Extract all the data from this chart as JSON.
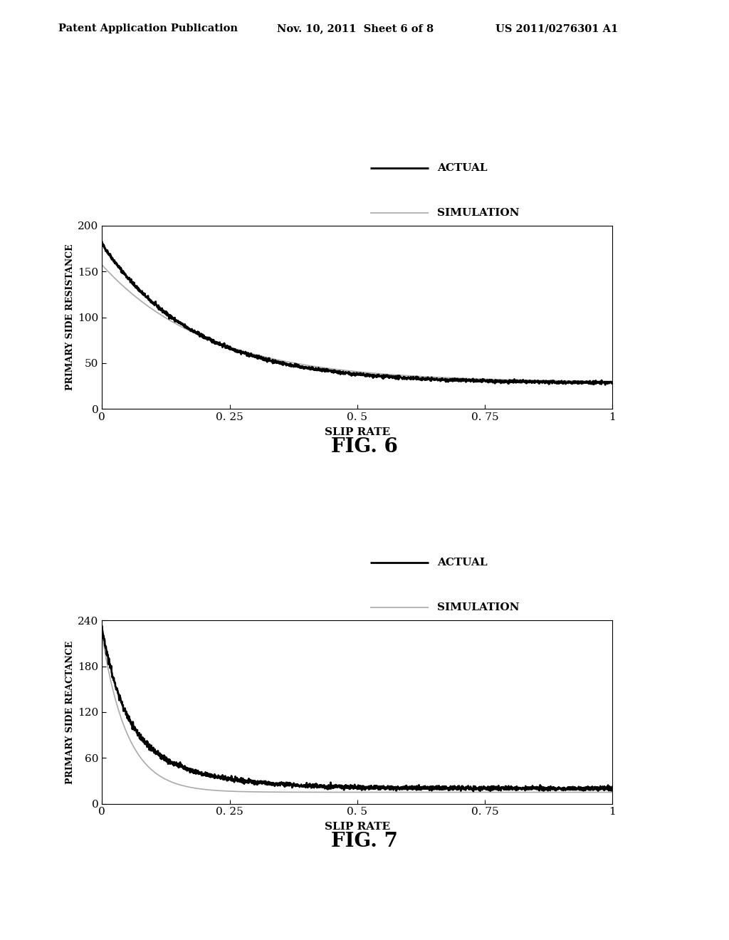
{
  "header_left": "Patent Application Publication",
  "header_mid": "Nov. 10, 2011  Sheet 6 of 8",
  "header_right": "US 2011/0276301 A1",
  "fig6_caption": "FIG. 6",
  "fig7_caption": "FIG. 7",
  "fig6_ylabel": "PRIMARY SIDE RESISTANCE",
  "fig7_ylabel": "PRIMARY SIDE REACTANCE",
  "xlabel": "SLIP RATE",
  "fig6_ylim": [
    0,
    200
  ],
  "fig7_ylim": [
    0,
    240
  ],
  "fig6_yticks": [
    0,
    50,
    100,
    150,
    200
  ],
  "fig7_yticks": [
    0,
    60,
    120,
    180,
    240
  ],
  "xticks": [
    0,
    0.25,
    0.5,
    0.75,
    1
  ],
  "xtick_labels": [
    "0",
    "0. 25",
    "0. 5",
    "0. 75",
    "1"
  ],
  "legend_actual_color": "#000000",
  "legend_sim_color": "#aaaaaa",
  "actual_linewidth": 2.0,
  "sim_linewidth": 1.2,
  "background_color": "#ffffff"
}
